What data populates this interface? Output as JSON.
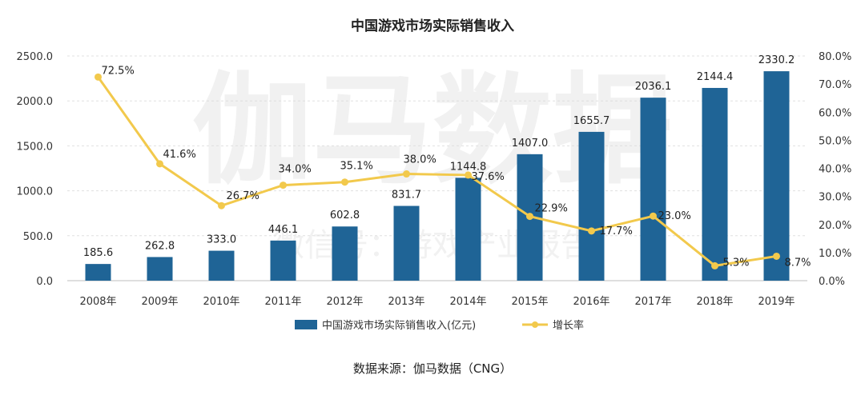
{
  "chart_data": {
    "type": "bar",
    "title": "中国游戏市场实际销售收入",
    "categories": [
      "2008年",
      "2009年",
      "2010年",
      "2011年",
      "2012年",
      "2013年",
      "2014年",
      "2015年",
      "2016年",
      "2017年",
      "2018年",
      "2019年"
    ],
    "series": [
      {
        "name": "中国游戏市场实际销售收入(亿元)",
        "type": "bar",
        "axis": "left",
        "color": "#1f6496",
        "values": [
          185.6,
          262.8,
          333.0,
          446.1,
          602.8,
          831.7,
          1144.8,
          1407.0,
          1655.7,
          2036.1,
          2144.4,
          2330.2
        ],
        "labels": [
          "185.6",
          "262.8",
          "333.0",
          "446.1",
          "602.8",
          "831.7",
          "1144.8",
          "1407.0",
          "1655.7",
          "2036.1",
          "2144.4",
          "2330.2"
        ]
      },
      {
        "name": "增长率",
        "type": "line",
        "axis": "right",
        "color": "#f2c94c",
        "values": [
          72.5,
          41.6,
          26.7,
          34.0,
          35.1,
          38.0,
          37.6,
          22.9,
          17.7,
          23.0,
          5.3,
          8.7
        ],
        "labels": [
          "72.5%",
          "41.6%",
          "26.7%",
          "34.0%",
          "35.1%",
          "38.0%",
          "37.6%",
          "22.9%",
          "17.7%",
          "23.0%",
          "5.3%",
          "8.7%"
        ]
      }
    ],
    "y_left": {
      "ylim": [
        0,
        2500
      ],
      "ticks": [
        "0.0",
        "500.0",
        "1000.0",
        "1500.0",
        "2000.0",
        "2500.0"
      ]
    },
    "y_right": {
      "ylim": [
        0,
        80
      ],
      "ticks": [
        "0.0%",
        "10.0%",
        "20.0%",
        "30.0%",
        "40.0%",
        "50.0%",
        "60.0%",
        "70.0%",
        "80.0%"
      ]
    },
    "grid": true,
    "legend_position": "bottom"
  },
  "source": "数据来源：伽马数据（CNG）",
  "watermark": {
    "big": "伽马数据",
    "small": "微信号：游戏产业报告"
  }
}
